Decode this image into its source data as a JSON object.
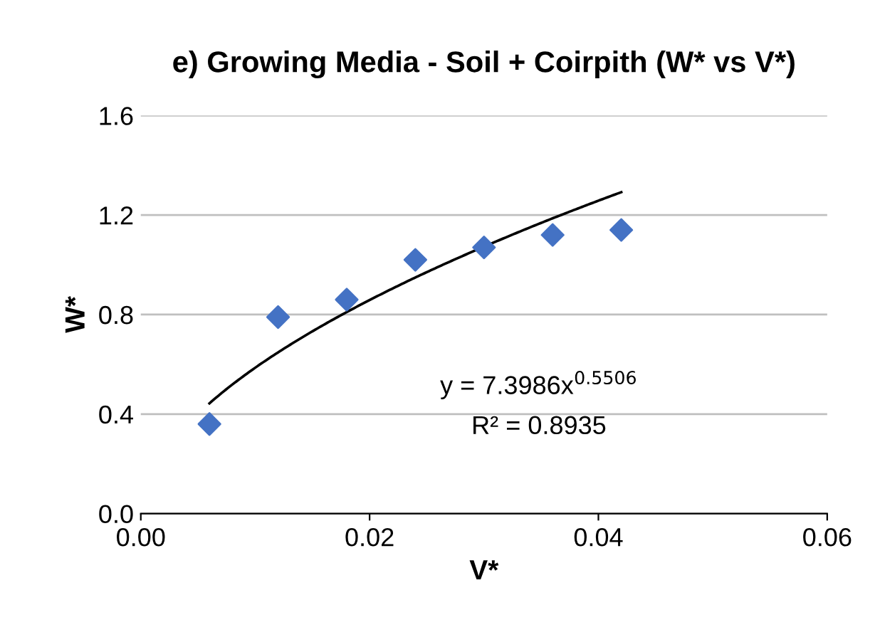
{
  "chart_data": {
    "type": "scatter",
    "title": "e) Growing Media - Soil + Coirpith (W* vs V*)",
    "xlabel": "V*",
    "ylabel": "W*",
    "xlim": [
      0.0,
      0.06
    ],
    "xticks": [
      {
        "value": 0,
        "label": "0.00"
      },
      {
        "value": 0.02,
        "label": "0.02"
      },
      {
        "value": 0.04,
        "label": "0.04"
      },
      {
        "value": 0.06,
        "label": "0.06"
      }
    ],
    "ylim": [
      0.0,
      1.6
    ],
    "yticks": [
      {
        "value": 0,
        "label": "0.0"
      },
      0.4,
      0.8,
      1.2,
      1.6
    ],
    "grid": "y",
    "series": [
      {
        "color": "#4472c4",
        "marker": "diamond",
        "x": [
          0.006,
          0.012,
          0.018,
          0.024,
          0.03,
          0.036,
          0.042
        ],
        "values": [
          0.36,
          0.79,
          0.86,
          1.02,
          1.07,
          1.12,
          1.14
        ]
      },
      {
        "type": "line",
        "color": "#000000",
        "marker": "none",
        "line_style": "solid",
        "x": [
          0.006,
          0.012,
          0.018,
          0.024,
          0.03,
          0.036,
          0.042
        ],
        "values": [
          0.443,
          0.648,
          0.81,
          0.949,
          1.073,
          1.187,
          1.292
        ]
      }
    ],
    "annotations": [
      "y = 7.3986x$^{0.5506}$",
      "R² = 0.8935"
    ]
  }
}
